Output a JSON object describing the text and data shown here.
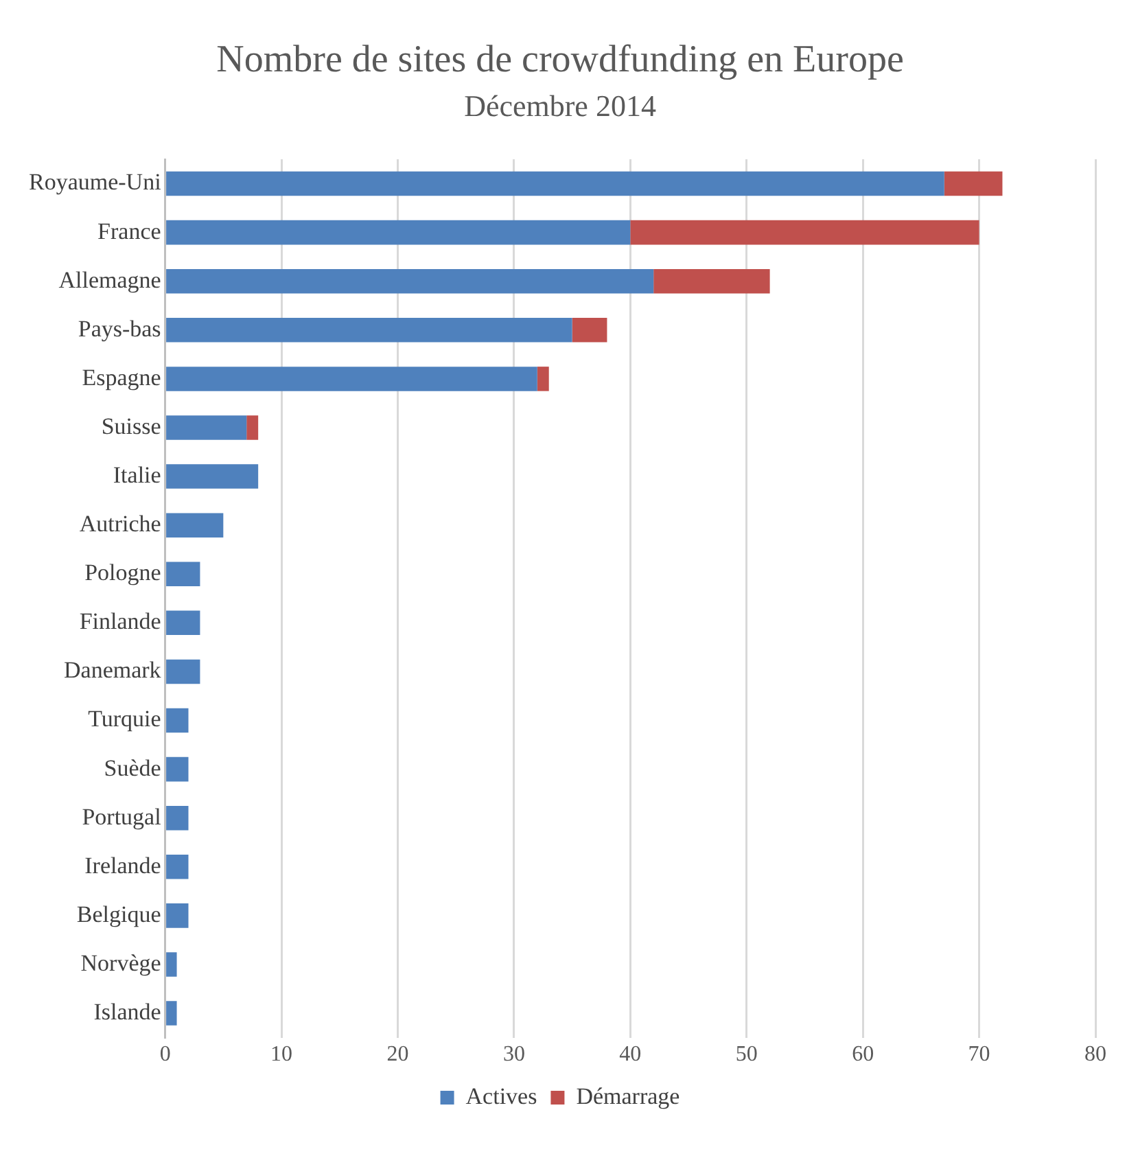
{
  "chart_data": {
    "type": "bar",
    "orientation": "horizontal",
    "stacked": true,
    "title": "Nombre de sites de crowdfunding en Europe",
    "subtitle": "Décembre 2014",
    "categories": [
      "Royaume-Uni",
      "France",
      "Allemagne",
      "Pays-bas",
      "Espagne",
      "Suisse",
      "Italie",
      "Autriche",
      "Pologne",
      "Finlande",
      "Danemark",
      "Turquie",
      "Suède",
      "Portugal",
      "Irelande",
      "Belgique",
      "Norvège",
      "Islande"
    ],
    "series": [
      {
        "name": "Actives",
        "color": "#4f81bd",
        "values": [
          67,
          40,
          42,
          35,
          32,
          7,
          8,
          5,
          3,
          3,
          3,
          2,
          2,
          2,
          2,
          2,
          1,
          1
        ]
      },
      {
        "name": "Démarrage",
        "color": "#c0504d",
        "values": [
          5,
          30,
          10,
          3,
          1,
          1,
          0,
          0,
          0,
          0,
          0,
          0,
          0,
          0,
          0,
          0,
          0,
          0
        ]
      }
    ],
    "xlim": [
      0,
      80
    ],
    "xticks": [
      0,
      10,
      20,
      30,
      40,
      50,
      60,
      70,
      80
    ],
    "grid": "x",
    "legend": "bottom"
  }
}
